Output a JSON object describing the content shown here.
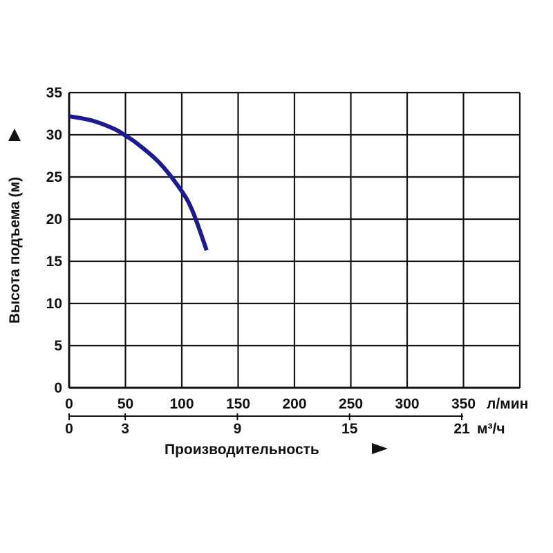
{
  "chart_data": {
    "type": "line",
    "ylabel": "Высота подъема (м)",
    "xlabel": "Производительность",
    "x_unit": "л/мин",
    "x2_unit": "м³/ч",
    "xlim": [
      0,
      400
    ],
    "ylim": [
      0,
      35
    ],
    "x_ticks": [
      0,
      50,
      100,
      150,
      200,
      250,
      300,
      350
    ],
    "x_tick_labels": [
      "0",
      "50",
      "100",
      "150",
      "200",
      "250",
      "300",
      "350"
    ],
    "y_ticks": [
      0,
      5,
      10,
      15,
      20,
      25,
      30,
      35
    ],
    "y_tick_labels": [
      "0",
      "5",
      "10",
      "15",
      "20",
      "25",
      "30",
      "35"
    ],
    "x2_ticks": [
      0,
      3,
      9,
      15,
      21
    ],
    "x2_tick_labels": [
      "0",
      "3",
      "9",
      "15",
      "21"
    ],
    "grid": true,
    "series": [
      {
        "color": "#1c1a8c",
        "x": [
          0,
          20,
          40,
          50,
          60,
          80,
          100,
          110,
          122
        ],
        "y": [
          32.2,
          31.7,
          30.7,
          29.9,
          29.0,
          26.7,
          23.3,
          20.8,
          16.3
        ]
      }
    ]
  }
}
